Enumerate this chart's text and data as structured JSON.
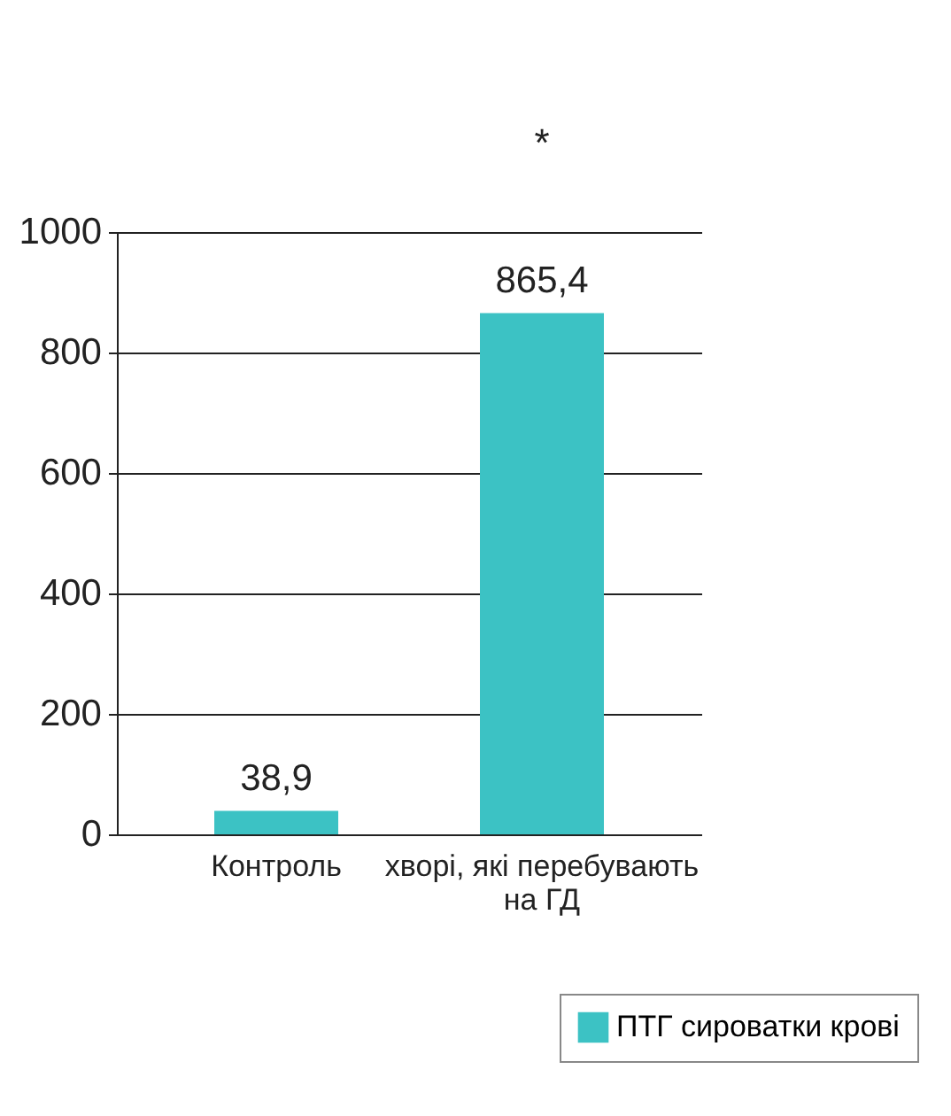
{
  "chart_data": {
    "type": "bar",
    "categories": [
      "Контроль",
      "хворі, які перебувають на ГД"
    ],
    "series": [
      {
        "name": "ПТГ сироватки крові",
        "color": "#3cc2c4",
        "values": [
          38.9,
          865.4
        ],
        "value_labels": [
          "38,9",
          "865,4"
        ]
      }
    ],
    "ylim": [
      0,
      1000
    ],
    "yticks": [
      0,
      200,
      400,
      600,
      800,
      1000
    ],
    "grid": "y",
    "legend": "bottom right",
    "annotations": [
      "*"
    ]
  }
}
